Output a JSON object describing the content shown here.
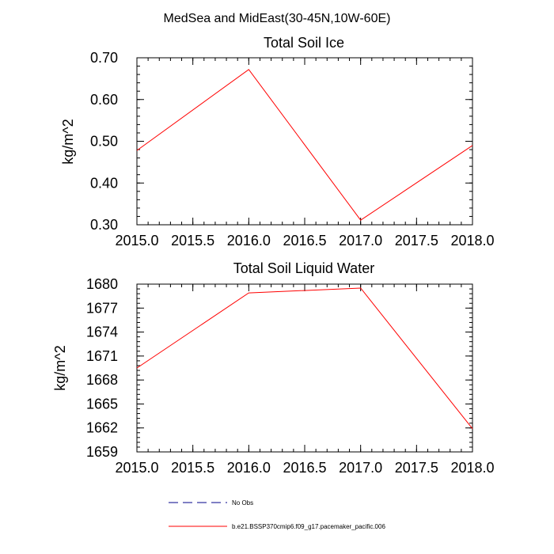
{
  "figure_title": "MedSea and MidEast(30-45N,10W-60E)",
  "chart_data": [
    {
      "type": "line",
      "title": "Total Soil Ice",
      "xlabel": "",
      "ylabel": "kg/m^2",
      "xlim": [
        2015.0,
        2018.0
      ],
      "ylim": [
        0.3,
        0.7
      ],
      "x_ticks": [
        2015.0,
        2015.5,
        2016.0,
        2016.5,
        2017.0,
        2017.5,
        2018.0
      ],
      "x_tick_labels": [
        "2015.0",
        "2015.5",
        "2016.0",
        "2016.5",
        "2017.0",
        "2017.5",
        "2018.0"
      ],
      "y_ticks": [
        0.3,
        0.4,
        0.5,
        0.6,
        0.7
      ],
      "y_tick_labels": [
        "0.30",
        "0.40",
        "0.50",
        "0.60",
        "0.70"
      ],
      "x_minor_step": 0.1,
      "y_minor_step": 0.02,
      "series": [
        {
          "color": "#ff0000",
          "x": [
            2015.0,
            2016.0,
            2017.0,
            2018.0
          ],
          "y": [
            0.478,
            0.672,
            0.311,
            0.49
          ]
        }
      ]
    },
    {
      "type": "line",
      "title": "Total Soil Liquid Water",
      "xlabel": "",
      "ylabel": "kg/m^2",
      "xlim": [
        2015.0,
        2018.0
      ],
      "ylim": [
        1659,
        1680
      ],
      "x_ticks": [
        2015.0,
        2015.5,
        2016.0,
        2016.5,
        2017.0,
        2017.5,
        2018.0
      ],
      "x_tick_labels": [
        "2015.0",
        "2015.5",
        "2016.0",
        "2016.5",
        "2017.0",
        "2017.5",
        "2018.0"
      ],
      "y_ticks": [
        1659,
        1662,
        1665,
        1668,
        1671,
        1674,
        1677,
        1680
      ],
      "y_tick_labels": [
        "1659",
        "1662",
        "1665",
        "1668",
        "1671",
        "1674",
        "1677",
        "1680"
      ],
      "x_minor_step": 0.1,
      "y_minor_step": 0.6,
      "series": [
        {
          "color": "#ff0000",
          "x": [
            2015.0,
            2016.0,
            2017.0,
            2018.0
          ],
          "y": [
            1669.5,
            1678.9,
            1679.5,
            1661.9
          ]
        }
      ]
    }
  ],
  "legend": {
    "items": [
      {
        "label": "No Obs",
        "color": "#00008b",
        "style": "dashed"
      },
      {
        "label": "b.e21.BSSP370cmip6.f09_g17.pacemaker_pacific.006",
        "color": "#ff0000",
        "style": "solid"
      }
    ]
  }
}
